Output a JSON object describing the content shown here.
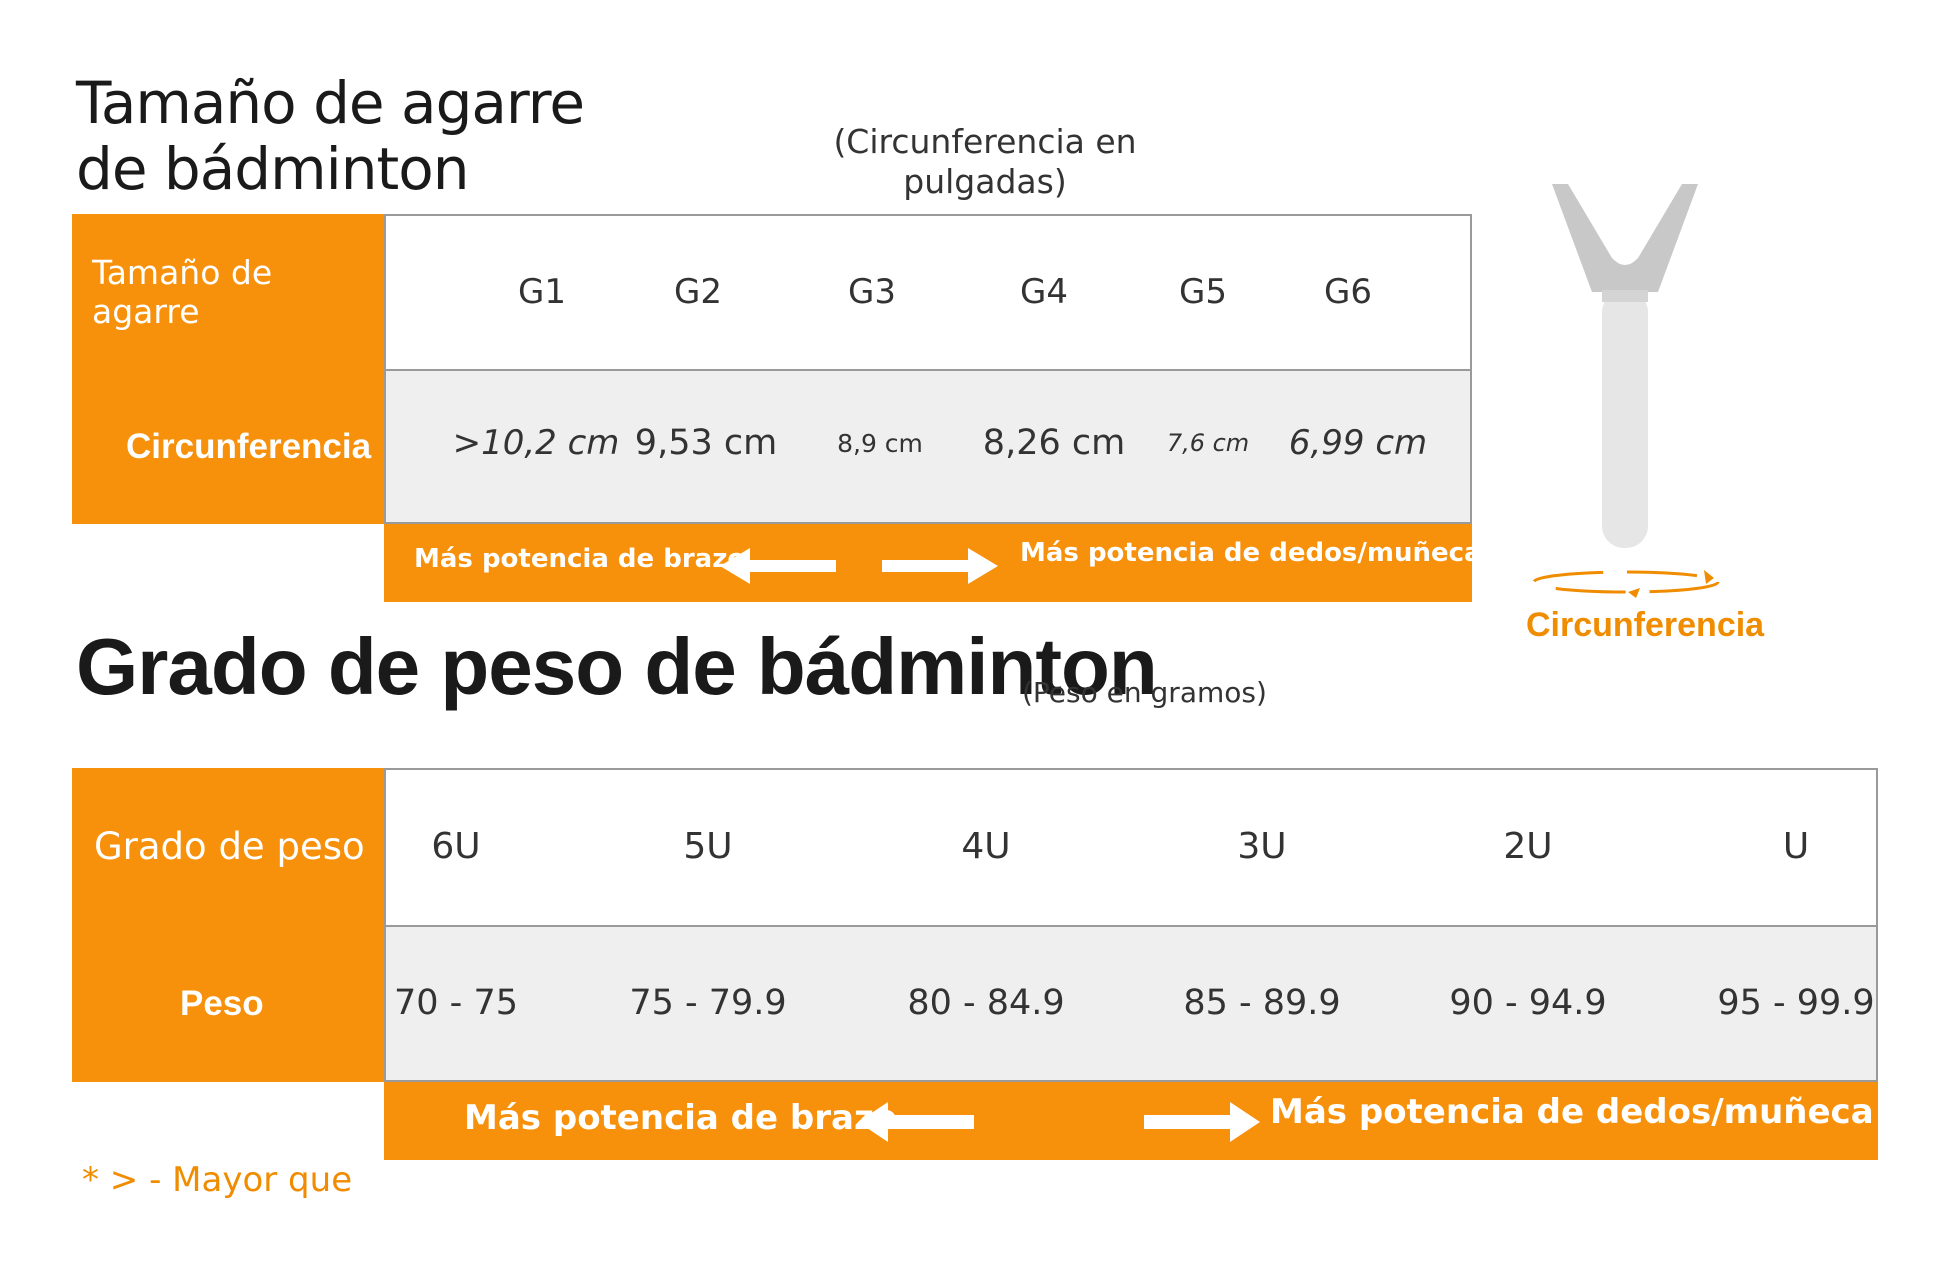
{
  "grip": {
    "title": "Tamaño de agarre de bádminton",
    "subtitle": "(Circunferencia en pulgadas)",
    "row_labels": {
      "size": "Tamaño de agarre",
      "circumference": "Circunferencia"
    },
    "sizes": [
      "G1",
      "G2",
      "G3",
      "G4",
      "G5",
      "G6"
    ],
    "circumferences": [
      ">10,2 cm",
      "9,53 cm",
      "8,9 cm",
      "8,26 cm",
      "7,6 cm",
      "6,99 cm"
    ],
    "band": {
      "left": "Más potencia de brazo",
      "right": "Más potencia de dedos/muñeca"
    }
  },
  "handle": {
    "label": "Circunferencia"
  },
  "weight": {
    "title": "Grado de peso de bádminton",
    "subtitle": "(Peso en gramos)",
    "row_labels": {
      "grade": "Grado de peso",
      "weight": "Peso"
    },
    "grades": [
      "6U",
      "5U",
      "4U",
      "3U",
      "2U",
      "U"
    ],
    "weights": [
      "70 - 75",
      "75 - 79.9",
      "80 - 84.9",
      "85 - 89.9",
      "90 - 94.9",
      "95 - 99.9"
    ],
    "band": {
      "left": "Más potencia de brazo",
      "right": "Más potencia de dedos/muñeca"
    }
  },
  "footnote": "* > - Mayor que",
  "colors": {
    "accent": "#f7900a",
    "row_grey": "#efefef",
    "text": "#333333"
  },
  "icons": [
    "arrow-left-icon",
    "arrow-right-icon",
    "racket-handle-icon",
    "rotation-arrow-icon"
  ]
}
